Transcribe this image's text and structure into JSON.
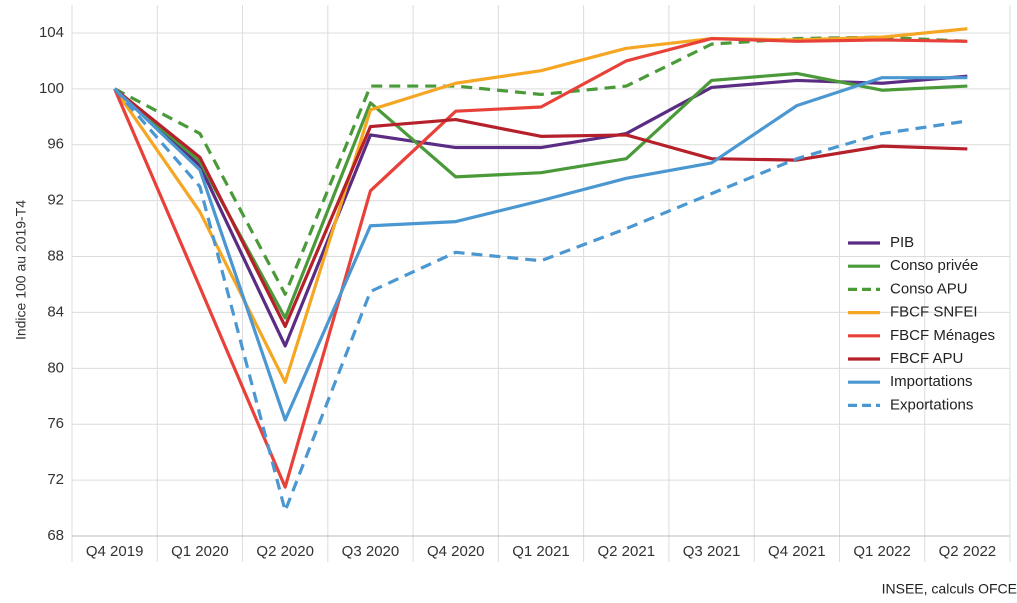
{
  "chart_data": {
    "type": "line",
    "y_label": "Indice 100 au 2019-T4",
    "source": "INSEE, calculs OFCE",
    "categories": [
      "Q4 2019",
      "Q1 2020",
      "Q2 2020",
      "Q3 2020",
      "Q4 2020",
      "Q1 2021",
      "Q2 2021",
      "Q3 2021",
      "Q4 2021",
      "Q1 2022",
      "Q2 2022"
    ],
    "ylim": [
      68,
      106
    ],
    "yticks": [
      68,
      72,
      76,
      80,
      84,
      88,
      92,
      96,
      100,
      104
    ],
    "grid": true,
    "legend": "right",
    "series": [
      {
        "name": "PIB",
        "color": "#5b2c83",
        "dashed": false,
        "values": [
          100,
          94.5,
          81.6,
          96.7,
          95.8,
          95.8,
          96.8,
          100.1,
          100.6,
          100.4,
          100.9
        ]
      },
      {
        "name": "Conso privée",
        "color": "#4a9a3a",
        "dashed": false,
        "values": [
          100,
          94.8,
          83.6,
          99.0,
          93.7,
          94.0,
          95.0,
          100.6,
          101.1,
          99.9,
          100.2
        ]
      },
      {
        "name": "Conso APU",
        "color": "#4a9a3a",
        "dashed": true,
        "values": [
          100,
          96.8,
          85.3,
          100.2,
          100.2,
          99.6,
          100.2,
          103.2,
          103.6,
          103.7,
          103.4
        ]
      },
      {
        "name": "FBCF SNFEI",
        "color": "#f5a623",
        "dashed": false,
        "values": [
          100,
          91.2,
          79.0,
          98.5,
          100.4,
          101.3,
          102.9,
          103.6,
          103.5,
          103.7,
          104.3
        ]
      },
      {
        "name": "FBCF Ménages",
        "color": "#e8413a",
        "dashed": false,
        "values": [
          100,
          85.8,
          71.5,
          92.7,
          98.4,
          98.7,
          102.0,
          103.6,
          103.4,
          103.5,
          103.4
        ]
      },
      {
        "name": "FBCF APU",
        "color": "#b5202a",
        "dashed": false,
        "values": [
          100,
          95.1,
          83.0,
          97.3,
          97.8,
          96.6,
          96.7,
          95.0,
          94.9,
          95.9,
          95.7
        ]
      },
      {
        "name": "Importations",
        "color": "#4b97d1",
        "dashed": false,
        "values": [
          100,
          94.2,
          76.3,
          90.2,
          90.5,
          92.0,
          93.6,
          94.7,
          98.8,
          100.8,
          100.8
        ]
      },
      {
        "name": "Exportations",
        "color": "#4b97d1",
        "dashed": true,
        "values": [
          100,
          93.0,
          69.8,
          85.5,
          88.3,
          87.7,
          90.0,
          92.5,
          95.0,
          96.8,
          97.7
        ]
      }
    ]
  }
}
